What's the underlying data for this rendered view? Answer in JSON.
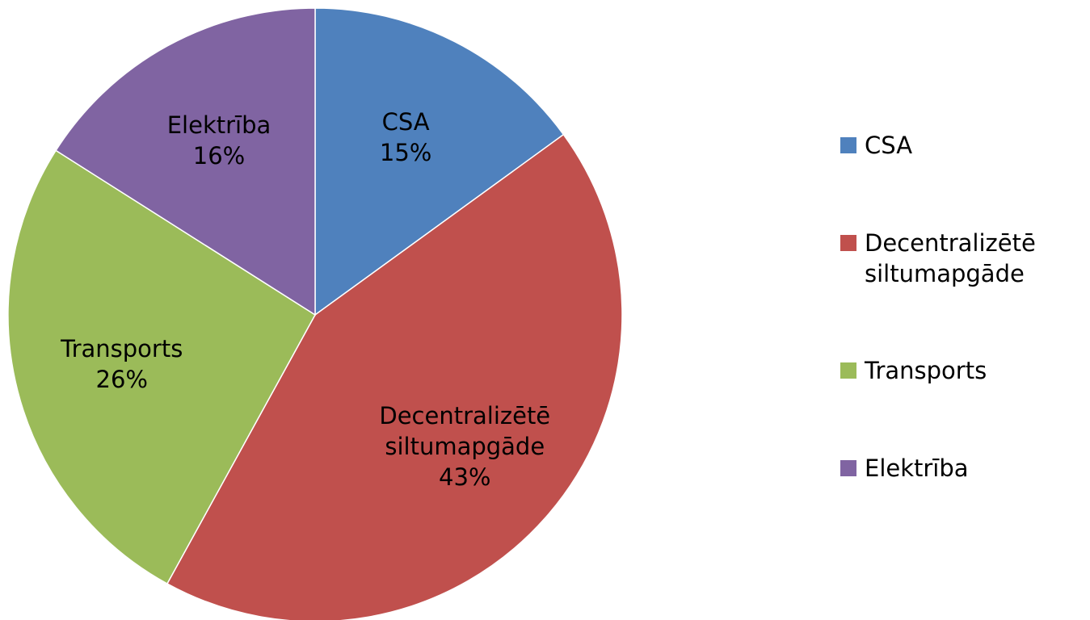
{
  "chart_data": {
    "type": "pie",
    "categories": [
      "CSA",
      "Decentralizētē siltumapgāde",
      "Transports",
      "Elektrība"
    ],
    "values": [
      15,
      43,
      26,
      16
    ],
    "value_labels": [
      "15%",
      "43%",
      "26%",
      "16%"
    ],
    "colors": [
      "#4f81bd",
      "#c0504d",
      "#9bbb59",
      "#8064a2"
    ],
    "legend": "right"
  }
}
